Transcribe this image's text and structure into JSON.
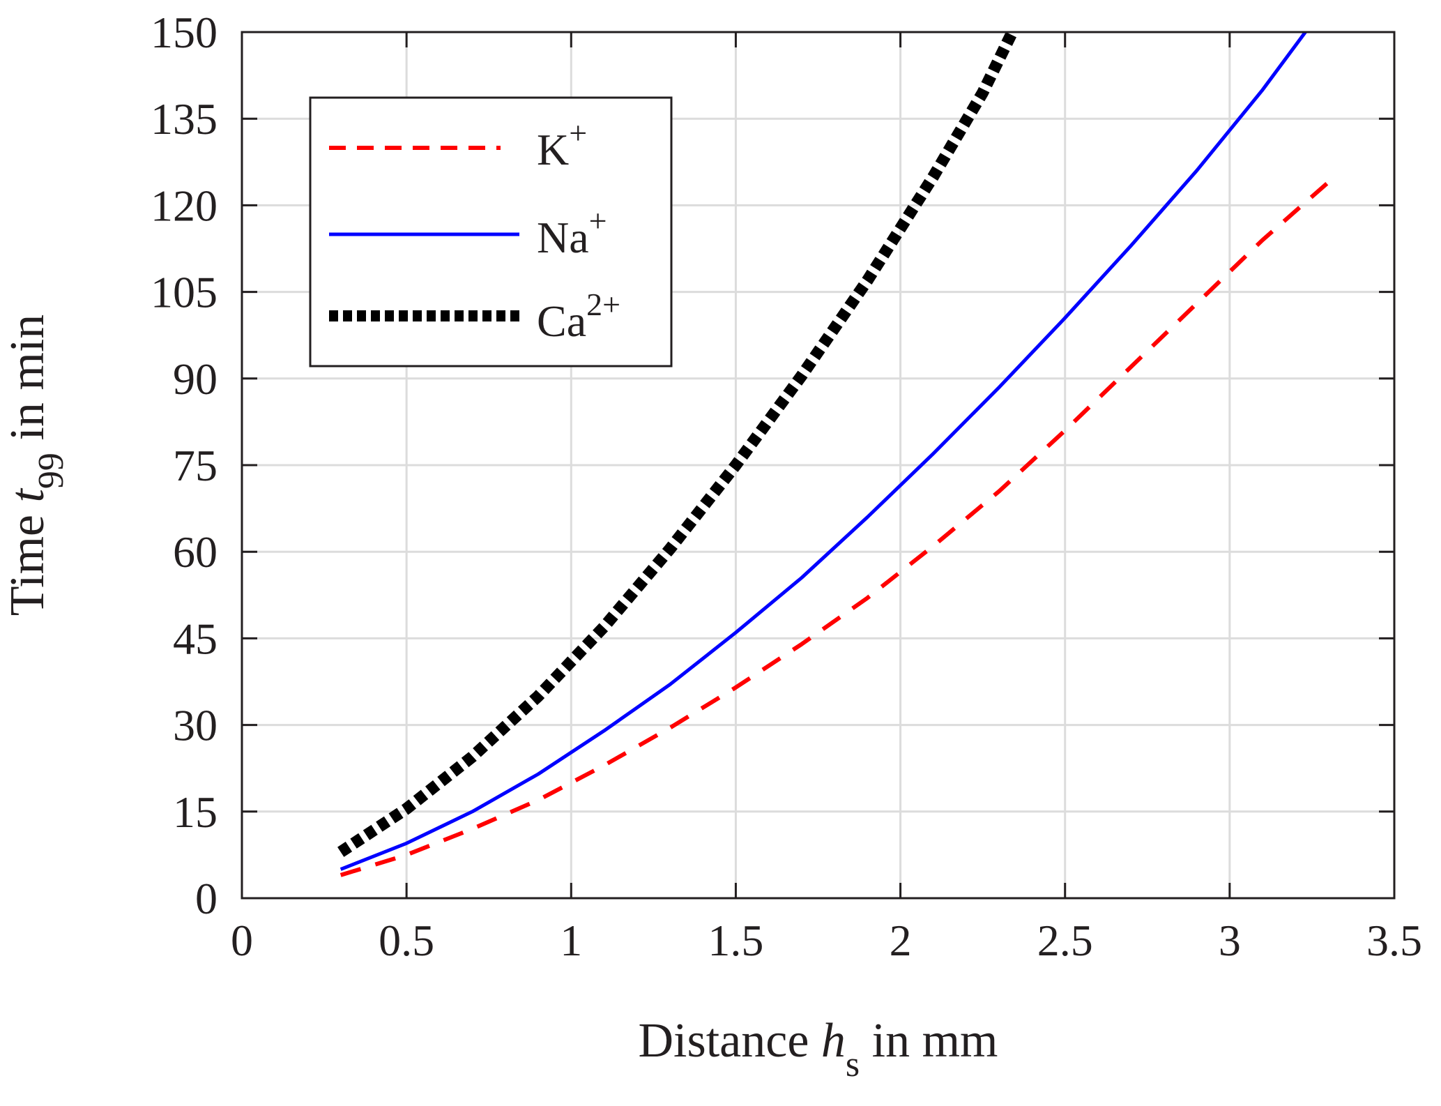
{
  "chart_data": {
    "type": "line",
    "title": "",
    "xlabel": {
      "prefix": "Distance ",
      "symbol": "h",
      "subscript": "s",
      "suffix": " in mm"
    },
    "ylabel": {
      "prefix": "Time ",
      "symbol": "t",
      "subscript": "99",
      "suffix": " in min"
    },
    "xlim": [
      0,
      3.5
    ],
    "ylim": [
      0,
      150
    ],
    "xticks": [
      0,
      0.5,
      1,
      1.5,
      2,
      2.5,
      3,
      3.5
    ],
    "xtick_labels": [
      "0",
      "0.5",
      "1",
      "1.5",
      "2",
      "2.5",
      "3",
      "3.5"
    ],
    "yticks": [
      0,
      15,
      30,
      45,
      60,
      75,
      90,
      105,
      120,
      135,
      150
    ],
    "ytick_labels": [
      "0",
      "15",
      "30",
      "45",
      "60",
      "75",
      "90",
      "105",
      "120",
      "135",
      "150"
    ],
    "grid": true,
    "legend": {
      "position": "top-left",
      "entries": [
        "K",
        "Na",
        "Ca"
      ]
    },
    "series": [
      {
        "name": "K",
        "superscript": "+",
        "color": "#ff0000",
        "style": "dashed",
        "x": [
          0.3,
          0.5,
          0.7,
          0.9,
          1.1,
          1.3,
          1.5,
          1.7,
          1.9,
          2.1,
          2.3,
          2.5,
          2.7,
          2.9,
          3.1,
          3.3
        ],
        "y": [
          4,
          7.5,
          12,
          17,
          23,
          29.5,
          36.5,
          44,
          52,
          61,
          70.5,
          81,
          92,
          103,
          114,
          124
        ]
      },
      {
        "name": "Na",
        "superscript": "+",
        "color": "#0000ff",
        "style": "solid",
        "x": [
          0.3,
          0.5,
          0.7,
          0.9,
          1.1,
          1.3,
          1.5,
          1.7,
          1.9,
          2.1,
          2.3,
          2.5,
          2.7,
          2.9,
          3.1,
          3.23
        ],
        "y": [
          5,
          9.5,
          15,
          21.5,
          29,
          37,
          46,
          55.5,
          66,
          77,
          88.5,
          100.5,
          113,
          126,
          140,
          150
        ]
      },
      {
        "name": "Ca",
        "superscript": "2+",
        "color": "#000000",
        "style": "dotted",
        "x": [
          0.3,
          0.5,
          0.7,
          0.9,
          1.1,
          1.3,
          1.5,
          1.7,
          1.9,
          2.1,
          2.25,
          2.34
        ],
        "y": [
          8,
          15.5,
          24.5,
          35,
          47,
          60.5,
          75,
          90.5,
          107,
          125,
          139.5,
          150
        ]
      }
    ]
  }
}
